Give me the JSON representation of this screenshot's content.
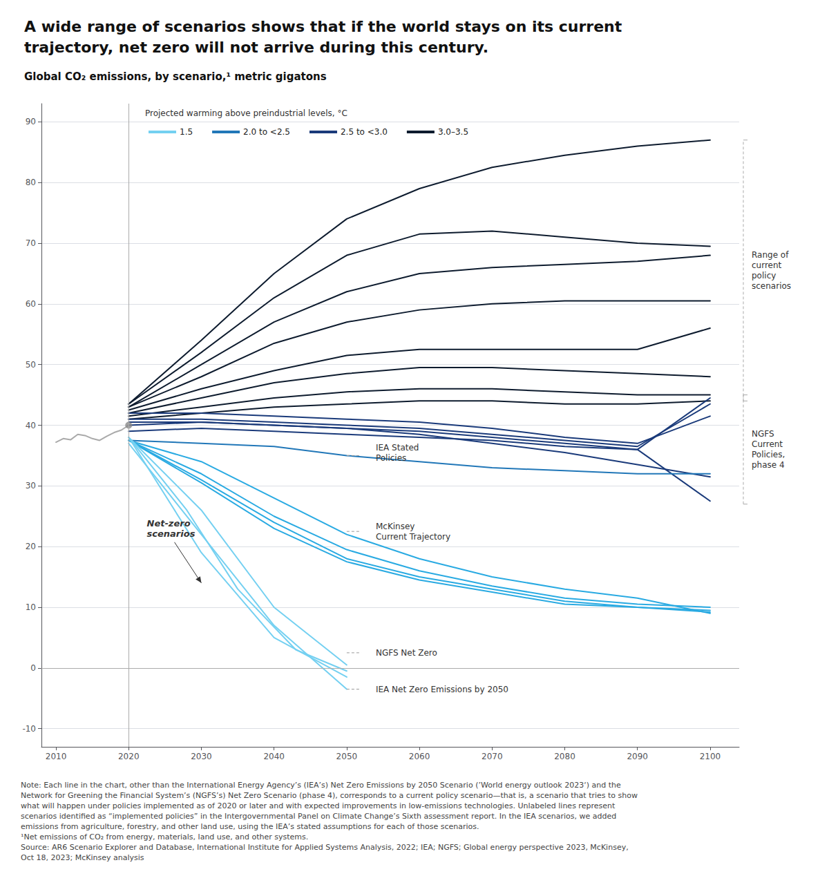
{
  "chart_data": {
    "type": "line",
    "title": "A wide range of scenarios shows that if the world stays on its current\ntrajectory, net zero will not arrive during this century.",
    "subtitle": "Global CO₂ emissions, by scenario,¹ metric gigatons",
    "xlim": [
      2008,
      2104
    ],
    "ylim": [
      -13,
      93
    ],
    "xticks": [
      2010,
      2020,
      2030,
      2040,
      2050,
      2060,
      2070,
      2080,
      2090,
      2100
    ],
    "yticks": [
      -10,
      0,
      10,
      20,
      30,
      40,
      50,
      60,
      70,
      80,
      90
    ],
    "grid": true,
    "legend": "upper left",
    "legend_title": "Projected warming above preindustrial levels, °C",
    "series": [
      {
        "name": "3.0–3.5",
        "color": "#0d1b2e",
        "x": [
          2020,
          2030,
          2040,
          2050,
          2060,
          2070,
          2080,
          2090,
          2100
        ],
        "values": [
          43.5,
          54.0,
          65.0,
          74.0,
          79.0,
          82.5,
          84.5,
          86.0,
          87.0
        ]
      },
      {
        "name": "3.0–3.5",
        "color": "#0d1b2e",
        "x": [
          2020,
          2030,
          2040,
          2050,
          2060,
          2070,
          2080,
          2090,
          2100
        ],
        "values": [
          43.5,
          52.0,
          61.0,
          68.0,
          71.5,
          72.0,
          71.0,
          70.0,
          69.5
        ]
      },
      {
        "name": "3.0–3.5",
        "color": "#0d1b2e",
        "x": [
          2020,
          2030,
          2040,
          2050,
          2060,
          2070,
          2080,
          2090,
          2100
        ],
        "values": [
          43.0,
          50.0,
          57.0,
          62.0,
          65.0,
          66.0,
          66.5,
          67.0,
          68.0
        ]
      },
      {
        "name": "3.0–3.5",
        "color": "#0d1b2e",
        "x": [
          2020,
          2030,
          2040,
          2050,
          2060,
          2070,
          2080,
          2090,
          2100
        ],
        "values": [
          43.0,
          48.0,
          53.5,
          57.0,
          59.0,
          60.0,
          60.5,
          60.5,
          60.5
        ]
      },
      {
        "name": "3.0–3.5",
        "color": "#0d1b2e",
        "x": [
          2020,
          2030,
          2040,
          2050,
          2060,
          2070,
          2080,
          2090,
          2100
        ],
        "values": [
          42.5,
          46.0,
          49.0,
          51.5,
          52.5,
          52.5,
          52.5,
          52.5,
          56.0
        ]
      },
      {
        "name": "3.0–3.5",
        "color": "#0d1b2e",
        "x": [
          2020,
          2030,
          2040,
          2050,
          2060,
          2070,
          2080,
          2090,
          2100
        ],
        "values": [
          42.0,
          44.5,
          47.0,
          48.5,
          49.5,
          49.5,
          49.0,
          48.5,
          48.0
        ]
      },
      {
        "name": "3.0–3.5",
        "color": "#0d1b2e",
        "x": [
          2020,
          2030,
          2040,
          2050,
          2060,
          2070,
          2080,
          2090,
          2100
        ],
        "values": [
          41.5,
          43.0,
          44.5,
          45.5,
          46.0,
          46.0,
          45.5,
          45.0,
          45.0
        ]
      },
      {
        "name": "3.0–3.5",
        "color": "#0d1b2e",
        "x": [
          2020,
          2030,
          2040,
          2050,
          2060,
          2070,
          2080,
          2090,
          2100
        ],
        "values": [
          41.0,
          42.0,
          43.0,
          43.5,
          44.0,
          44.0,
          43.5,
          43.5,
          44.0
        ]
      },
      {
        "name": "2.5 to <3.0",
        "color": "#1a3a7a",
        "x": [
          2020,
          2030,
          2040,
          2050,
          2060,
          2070,
          2080,
          2090,
          2100
        ],
        "values": [
          40.0,
          40.5,
          40.0,
          39.5,
          38.5,
          37.0,
          35.5,
          33.5,
          31.5
        ]
      },
      {
        "name": "2.5 to <3.0",
        "color": "#1a3a7a",
        "x": [
          2020,
          2030,
          2040,
          2050,
          2060,
          2070,
          2080,
          2090,
          2100
        ],
        "values": [
          42.0,
          42.0,
          41.5,
          41.0,
          40.5,
          39.5,
          38.0,
          37.0,
          41.5
        ]
      },
      {
        "name": "2.5 to <3.0",
        "color": "#1a3a7a",
        "x": [
          2020,
          2030,
          2040,
          2050,
          2060,
          2070,
          2080,
          2090,
          2100
        ],
        "values": [
          41.0,
          41.0,
          40.5,
          40.0,
          39.5,
          38.5,
          37.5,
          36.5,
          43.5
        ]
      },
      {
        "name": "2.5 to <3.0",
        "color": "#1a3a7a",
        "x": [
          2020,
          2030,
          2040,
          2050,
          2060,
          2070,
          2080,
          2090,
          2100
        ],
        "values": [
          40.5,
          40.5,
          40.0,
          39.5,
          39.0,
          38.0,
          37.0,
          36.0,
          44.5
        ]
      },
      {
        "name": "2.5 to <3.0",
        "color": "#1a3a7a",
        "x": [
          2020,
          2030,
          2040,
          2050,
          2060,
          2070,
          2080,
          2090,
          2100
        ],
        "values": [
          39.0,
          39.5,
          39.0,
          38.5,
          38.0,
          37.5,
          36.5,
          36.0,
          27.5
        ]
      },
      {
        "name": "2.0 to <2.5",
        "color": "#2177b8",
        "x": [
          2020,
          2030,
          2040,
          2050,
          2060,
          2070,
          2080,
          2090,
          2100
        ],
        "values": [
          37.5,
          37.0,
          36.5,
          35.0,
          34.0,
          33.0,
          32.5,
          32.0,
          32.0
        ]
      },
      {
        "name": "2.0 to <2.5",
        "color": "#29aae2",
        "x": [
          2020,
          2030,
          2040,
          2050,
          2060,
          2070,
          2080,
          2090,
          2100
        ],
        "values": [
          37.5,
          34.0,
          28.0,
          22.0,
          18.0,
          15.0,
          13.0,
          11.5,
          9.0
        ]
      },
      {
        "name": "2.0 to <2.5",
        "color": "#29aae2",
        "x": [
          2020,
          2030,
          2040,
          2050,
          2060,
          2070,
          2080,
          2090,
          2100
        ],
        "values": [
          37.5,
          32.0,
          25.0,
          19.5,
          16.0,
          13.5,
          11.5,
          10.5,
          10.0
        ]
      },
      {
        "name": "2.0 to <2.5",
        "color": "#29aae2",
        "x": [
          2020,
          2030,
          2040,
          2050,
          2060,
          2070,
          2080,
          2090,
          2100
        ],
        "values": [
          37.5,
          31.0,
          24.0,
          18.0,
          15.0,
          13.0,
          11.0,
          10.0,
          9.5
        ]
      },
      {
        "name": "2.0 to <2.5",
        "color": "#29aae2",
        "x": [
          2020,
          2030,
          2040,
          2050,
          2060,
          2070,
          2080,
          2090,
          2100
        ],
        "values": [
          37.5,
          30.5,
          23.0,
          17.5,
          14.5,
          12.5,
          10.5,
          10.0,
          9.2
        ]
      },
      {
        "name": "1.5",
        "color": "#74d0f1",
        "x": [
          2020,
          2030,
          2040,
          2050
        ],
        "values": [
          38.0,
          26.0,
          10.0,
          0.5
        ]
      },
      {
        "name": "1.5",
        "color": "#74d0f1",
        "x": [
          2020,
          2030,
          2040,
          2050
        ],
        "values": [
          37.0,
          22.0,
          7.0,
          -3.5
        ]
      },
      {
        "name": "1.5",
        "color": "#74d0f1",
        "x": [
          2020,
          2030,
          2040,
          2050
        ],
        "values": [
          38.0,
          19.0,
          5.0,
          -1.5
        ]
      },
      {
        "name": "1.5",
        "color": "#74d0f1",
        "x": [
          2020,
          2028,
          2035,
          2043,
          2050
        ],
        "values": [
          38.0,
          26.0,
          13.0,
          3.0,
          -0.5
        ]
      },
      {
        "color": "#aaaaaa",
        "x": [
          2010,
          2011,
          2012,
          2013,
          2014,
          2015,
          2016,
          2017,
          2018,
          2019,
          2020
        ],
        "values": [
          37.2,
          37.8,
          37.6,
          38.5,
          38.3,
          37.8,
          37.5,
          38.2,
          38.8,
          39.2,
          40.0
        ]
      },
      {
        "type": "scatter",
        "color": "#888888",
        "x": [
          2020
        ],
        "values": [
          40.0
        ]
      }
    ],
    "reference_lines": [
      {
        "axis": "x",
        "value": 2020
      },
      {
        "axis": "y",
        "value": 0
      }
    ],
    "annotations": [
      {
        "text": "IEA Stated\nPolicies",
        "x": 2054,
        "y": 35.5,
        "leader_x": [
          2050,
          2052
        ],
        "leader_y": 35.0
      },
      {
        "text": "McKinsey\nCurrent Trajectory",
        "x": 2054,
        "y": 22.5,
        "leader_x": [
          2050,
          2052
        ],
        "leader_y": 22.5
      },
      {
        "text": "NGFS Net Zero",
        "x": 2054,
        "y": 2.5,
        "leader_x": [
          2050,
          2052
        ],
        "leader_y": 2.5
      },
      {
        "text": "IEA Net Zero Emissions by 2050",
        "x": 2054,
        "y": -3.5,
        "leader_x": [
          2050,
          2052
        ],
        "leader_y": -3.5
      },
      {
        "text": "Net-zero\nscenarios",
        "x": 2022.5,
        "y": 23,
        "arrow_to": [
          2030,
          14
        ]
      }
    ],
    "brackets": [
      {
        "text": "Range of\ncurrent\npolicy\nscenarios",
        "y_range": [
          44,
          87
        ]
      },
      {
        "text": "NGFS\nCurrent\nPolicies,\nphase 4",
        "y_range": [
          27,
          45
        ]
      }
    ],
    "note": "Note: Each line in the chart, other than the International Energy Agency’s (IEA’s) Net Zero Emissions by 2050 Scenario (’World energy outlook 2023‘) and the\nNetwork for Greening the Financial System’s (NGFS’s) Net Zero Scenario (phase 4), corresponds to a current policy scenario—that is, a scenario that tries to show\nwhat will happen under policies implemented as of 2020 or later and with expected improvements in low-emissions technologies. Unlabeled lines represent\nscenarios identified as “implemented policies” in the Intergovernmental Panel on Climate Change’s Sixth assessment report. In the IEA scenarios, we added\nemissions from agriculture, forestry, and other land use, using the IEA’s stated assumptions for each of those scenarios.\n¹Net emissions of CO₂ from energy, materials, land use, and other systems.\nSource: AR6 Scenario Explorer and Database, International Institute for Applied Systems Analysis, 2022; IEA; NGFS; Global energy perspective 2023, McKinsey,\nOct 18, 2023; McKinsey analysis"
  }
}
